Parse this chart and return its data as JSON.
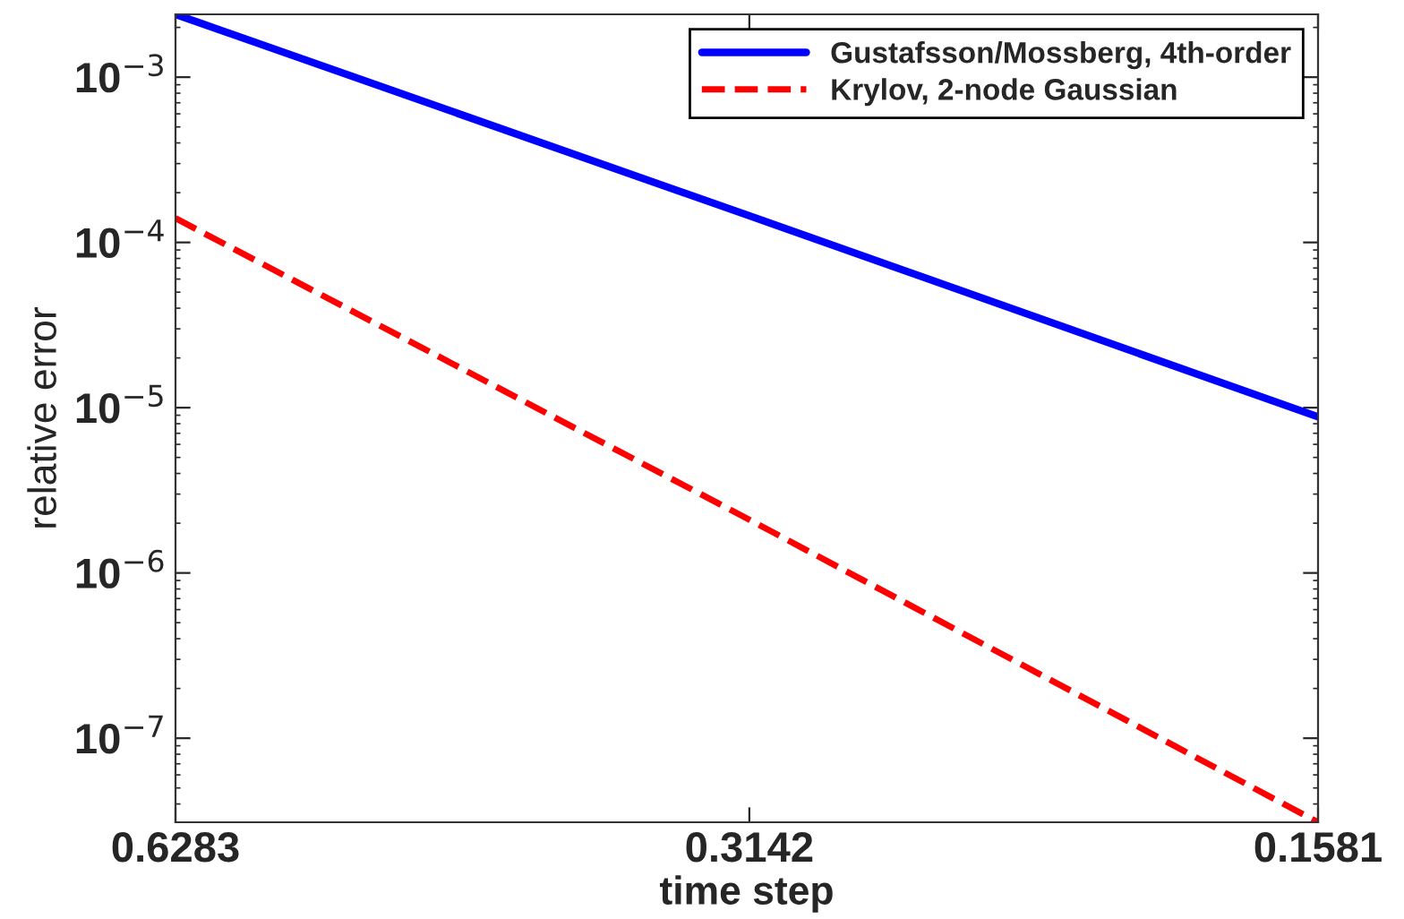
{
  "chart_data": {
    "type": "line",
    "xlabel": "time step",
    "ylabel": "relative error",
    "log": "xy",
    "x": [
      0.6283,
      0.3142,
      0.1581
    ],
    "series": [
      {
        "name": "Gustafsson/Mossberg, 4th-order",
        "color": "#0000ff",
        "line_style": "solid",
        "values": [
          0.0024,
          0.000145,
          8.8e-06
        ]
      },
      {
        "name": "Krylov, 2-node Gaussian",
        "color": "#ff0000",
        "line_style": "dashed",
        "values": [
          0.00014,
          2.1e-06,
          3.1e-08
        ]
      }
    ],
    "xlim": [
      0.6283,
      0.1581
    ],
    "xticks": [
      0.6283,
      0.3142,
      0.1581
    ],
    "ylim": [
      3.1e-08,
      0.0024
    ],
    "yticks": [
      {
        "value": 1e-07,
        "label": "10$^{−7}$"
      },
      {
        "value": 1e-06,
        "label": "10$^{−6}$"
      },
      {
        "value": 1e-05,
        "label": "10$^{−5}$"
      },
      {
        "value": 0.0001,
        "label": "10$^{−4}$"
      },
      {
        "value": 0.001,
        "label": "10$^{−3}$"
      }
    ],
    "grid": false,
    "legend": "top right"
  }
}
